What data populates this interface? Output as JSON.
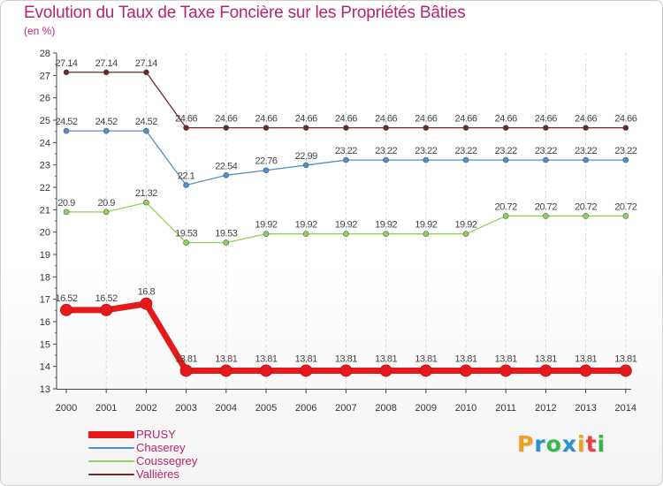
{
  "title": "Evolution du Taux de Taxe Foncière sur les Propriétés Bâties",
  "subtitle": "(en %)",
  "logo": {
    "letters": [
      "P",
      "r",
      "o",
      "x",
      "i",
      "t",
      "i"
    ],
    "colors": [
      "#f0a020",
      "#2a8fd6",
      "#35b84a",
      "#2a8fd6",
      "#f0a020",
      "#e84040",
      "#35b84a"
    ]
  },
  "chart_data": {
    "type": "line",
    "title": "Evolution du Taux de Taxe Foncière sur les Propriétés Bâties",
    "ylabel": "(en %)",
    "xlabel": "",
    "ylim": [
      13,
      28
    ],
    "yticks": [
      13,
      14,
      15,
      16,
      17,
      18,
      19,
      20,
      21,
      22,
      23,
      24,
      25,
      26,
      27,
      28
    ],
    "x": [
      "2000",
      "2001",
      "2002",
      "2003",
      "2004",
      "2005",
      "2006",
      "2007",
      "2008",
      "2009",
      "2010",
      "2011",
      "2012",
      "2013",
      "2014"
    ],
    "grid": "vertical dashed",
    "legend": "bottom-left",
    "series": [
      {
        "name": "PRUSY",
        "color": "#e41a1c",
        "emphasis": "thick",
        "values": [
          16.52,
          16.52,
          16.8,
          13.81,
          13.81,
          13.81,
          13.81,
          13.81,
          13.81,
          13.81,
          13.81,
          13.81,
          13.81,
          13.81,
          13.81
        ],
        "labels": [
          "16.52",
          "16.52",
          "16.8",
          "13.81",
          "13.81",
          "13.81",
          "13.81",
          "13.81",
          "13.81",
          "13.81",
          "13.81",
          "13.81",
          "13.81",
          "13.81",
          "13.81"
        ]
      },
      {
        "name": "Chaserey",
        "color": "#4f91cc",
        "emphasis": "normal",
        "values": [
          24.52,
          24.52,
          24.52,
          22.1,
          22.54,
          22.76,
          22.99,
          23.22,
          23.22,
          23.22,
          23.22,
          23.22,
          23.22,
          23.22,
          23.22
        ],
        "labels": [
          "24.52",
          "24.52",
          "24.52",
          "22.1",
          "22.54",
          "22.76",
          "22.99",
          "23.22",
          "23.22",
          "23.22",
          "23.22",
          "23.22",
          "23.22",
          "23.22",
          "23.22"
        ]
      },
      {
        "name": "Coussegrey",
        "color": "#8fd45a",
        "emphasis": "normal",
        "values": [
          20.9,
          20.9,
          21.32,
          19.53,
          19.53,
          19.92,
          19.92,
          19.92,
          19.92,
          19.92,
          19.92,
          20.72,
          20.72,
          20.72,
          20.72
        ],
        "labels": [
          "20.9",
          "20.9",
          "21.32",
          "19.53",
          "19.53",
          "19.92",
          "19.92",
          "19.92",
          "19.92",
          "19.92",
          "19.92",
          "20.72",
          "20.72",
          "20.72",
          "20.72"
        ]
      },
      {
        "name": "Vallières",
        "color": "#6b2a2a",
        "emphasis": "normal",
        "values": [
          27.14,
          27.14,
          27.14,
          24.66,
          24.66,
          24.66,
          24.66,
          24.66,
          24.66,
          24.66,
          24.66,
          24.66,
          24.66,
          24.66,
          24.66
        ],
        "labels": [
          "27.14",
          "27.14",
          "27.14",
          "24.66",
          "24.66",
          "24.66",
          "24.66",
          "24.66",
          "24.66",
          "24.66",
          "24.66",
          "24.66",
          "24.66",
          "24.66",
          "24.66"
        ]
      }
    ]
  }
}
